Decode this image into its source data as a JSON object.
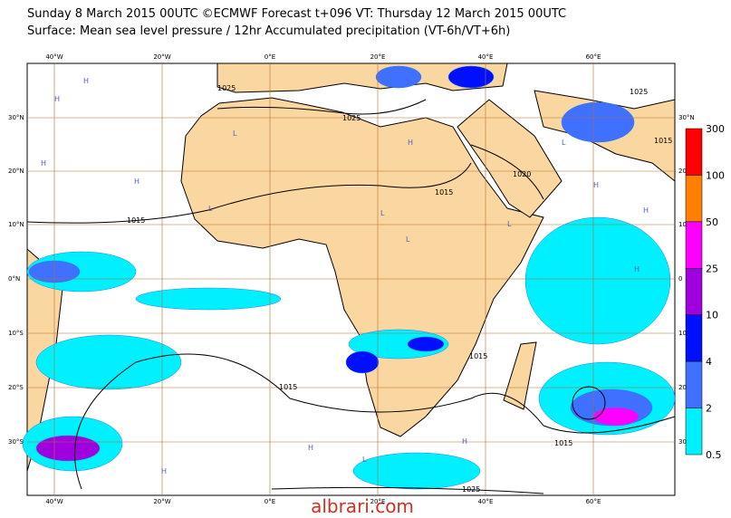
{
  "header": {
    "title": "Sunday 8 March 2015 00UTC ©ECMWF Forecast t+096 VT: Thursday 12 March 2015 00UTC",
    "subtitle": "Surface: Mean sea level pressure / 12hr Accumulated precipitation (VT-6h/VT+6h)"
  },
  "map": {
    "lon_labels_top": [
      "40°W",
      "20°W",
      "0°E",
      "20°E",
      "40°E",
      "60°E"
    ],
    "lon_labels_bottom": [
      "40°W",
      "20°W",
      "0°E",
      "20°E",
      "40°E",
      "60°E"
    ],
    "lat_labels_left": [
      "30°N",
      "20°N",
      "10°N",
      "0°N",
      "10°S",
      "20°S",
      "30°S"
    ],
    "lat_labels_right": [
      "30°N",
      "20",
      "10",
      "0",
      "10",
      "20",
      "30"
    ],
    "isobar_labels": [
      "1025",
      "1025",
      "1015",
      "1025",
      "1015",
      "1020",
      "1015",
      "1015",
      "1015",
      "1015",
      "1025"
    ],
    "pressure_centers": [
      "H",
      "H",
      "H",
      "H",
      "L",
      "L",
      "L",
      "H",
      "L",
      "L",
      "L",
      "H",
      "H",
      "H",
      "L",
      "H",
      "H",
      "H",
      "L"
    ]
  },
  "colorbar": {
    "levels": [
      "300",
      "100",
      "50",
      "25",
      "10",
      "4",
      "2",
      "0.5"
    ],
    "colors": [
      "#ff0000",
      "#ff8000",
      "#ff00ff",
      "#a000e0",
      "#0010ff",
      "#4070ff",
      "#00f0ff"
    ]
  },
  "watermark": "albrari.com"
}
